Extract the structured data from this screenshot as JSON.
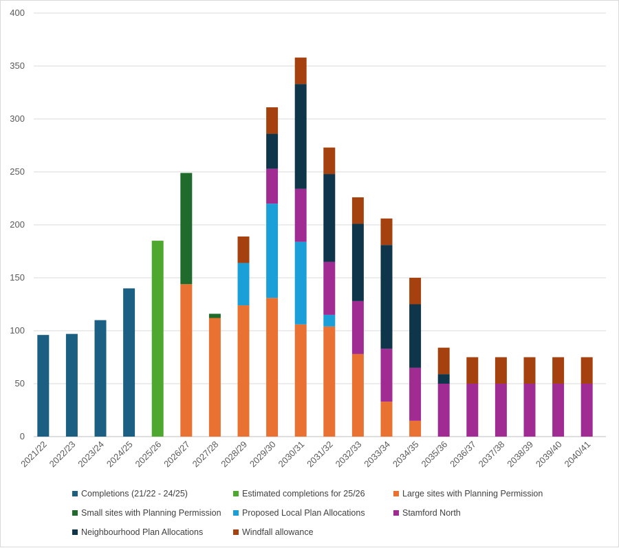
{
  "chart_data": {
    "type": "bar",
    "stacked": true,
    "categories": [
      "2021/22",
      "2022/23",
      "2023/24",
      "2024/25",
      "2025/26",
      "2026/27",
      "2027/28",
      "2028/29",
      "2029/30",
      "2030/31",
      "2031/32",
      "2032/33",
      "2033/34",
      "2034/35",
      "2035/36",
      "2036/37",
      "2037/38",
      "2038/39",
      "2039/40",
      "2040/41"
    ],
    "ylim": [
      0,
      400
    ],
    "yticks": [
      0,
      50,
      100,
      150,
      200,
      250,
      300,
      350,
      400
    ],
    "grid": true,
    "legend_position": "bottom",
    "series": [
      {
        "name": "Completions (21/22 - 24/25)",
        "color": "#1b5f83",
        "values": [
          96,
          97,
          110,
          140,
          0,
          0,
          0,
          0,
          0,
          0,
          0,
          0,
          0,
          0,
          0,
          0,
          0,
          0,
          0,
          0
        ]
      },
      {
        "name": "Estimated completions for 25/26",
        "color": "#4ea72e",
        "values": [
          0,
          0,
          0,
          0,
          185,
          0,
          0,
          0,
          0,
          0,
          0,
          0,
          0,
          0,
          0,
          0,
          0,
          0,
          0,
          0
        ]
      },
      {
        "name": "Large sites with Planning Permission",
        "color": "#e97132",
        "values": [
          0,
          0,
          0,
          0,
          0,
          144,
          112,
          124,
          131,
          106,
          104,
          78,
          33,
          15,
          0,
          0,
          0,
          0,
          0,
          0
        ]
      },
      {
        "name": "Small sites with Planning Permission",
        "color": "#1e6b2c",
        "values": [
          0,
          0,
          0,
          0,
          0,
          105,
          4,
          0,
          0,
          0,
          0,
          0,
          0,
          0,
          0,
          0,
          0,
          0,
          0,
          0
        ]
      },
      {
        "name": "Proposed Local Plan Allocations",
        "color": "#1a9fd8",
        "values": [
          0,
          0,
          0,
          0,
          0,
          0,
          0,
          40,
          89,
          78,
          11,
          0,
          0,
          0,
          0,
          0,
          0,
          0,
          0,
          0
        ]
      },
      {
        "name": "Stamford North",
        "color": "#a02b93",
        "values": [
          0,
          0,
          0,
          0,
          0,
          0,
          0,
          0,
          33,
          50,
          50,
          50,
          50,
          50,
          50,
          50,
          50,
          50,
          50,
          50
        ]
      },
      {
        "name": "Neighbourhood Plan Allocations",
        "color": "#0e3549",
        "values": [
          0,
          0,
          0,
          0,
          0,
          0,
          0,
          0,
          33,
          99,
          83,
          73,
          98,
          60,
          9,
          0,
          0,
          0,
          0,
          0
        ]
      },
      {
        "name": "Windfall allowance",
        "color": "#a5410e",
        "values": [
          0,
          0,
          0,
          0,
          0,
          0,
          0,
          25,
          25,
          25,
          25,
          25,
          25,
          25,
          25,
          25,
          25,
          25,
          25,
          25
        ]
      }
    ]
  },
  "colors": {
    "grid": "#d9d9d9",
    "axis": "#bfbfbf",
    "text": "#595959"
  }
}
